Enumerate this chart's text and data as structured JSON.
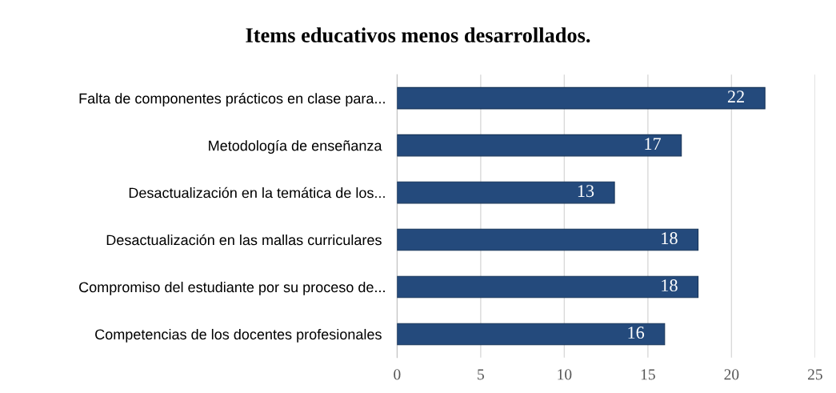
{
  "chart_data": {
    "type": "bar",
    "orientation": "horizontal",
    "title": "Items educativos menos desarrollados.",
    "categories": [
      "Falta de componentes prácticos en clase para...",
      "Metodología de enseñanza ",
      "Desactualización en la temática de los...",
      "Desactualización en las mallas curriculares ",
      "Compromiso del estudiante por su proceso de...",
      "Competencias de los docentes profesionales "
    ],
    "values": [
      22,
      17,
      13,
      18,
      18,
      16
    ],
    "color": "#244a7c",
    "xlim": [
      0,
      25
    ],
    "xticks": [
      0,
      5,
      10,
      15,
      20,
      25
    ],
    "grid": "x",
    "data_labels": true
  }
}
